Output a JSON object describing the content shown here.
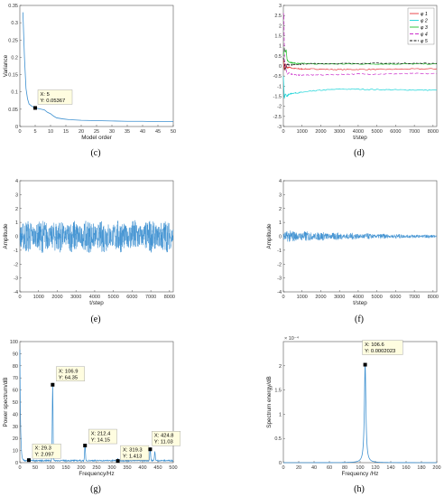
{
  "colors": {
    "signal": "#3b8fd0",
    "datatip_bg": "#fffde0",
    "axis": "#333333"
  },
  "chart_data": [
    {
      "id": "c",
      "type": "line",
      "caption": "(c)",
      "xlabel": "Model order",
      "ylabel": "Variance",
      "xlim": [
        0,
        50
      ],
      "ylim": [
        0,
        0.35
      ],
      "xticks": [
        0,
        5,
        10,
        15,
        20,
        25,
        30,
        35,
        40,
        45,
        50
      ],
      "yticks": [
        0,
        0.05,
        0.1,
        0.15,
        0.2,
        0.25,
        0.3,
        0.35
      ],
      "ytick_labels": [
        "0",
        "0.05",
        "0.1",
        "0.15",
        "0.2",
        "0.25",
        "0.3",
        "0.35"
      ],
      "series": [
        {
          "color": "#3b8fd0",
          "x": [
            1,
            1.5,
            2,
            2.5,
            3,
            4,
            5,
            6,
            7,
            8,
            9,
            10,
            11,
            12,
            14,
            16,
            18,
            20,
            25,
            30,
            35,
            40,
            45,
            50
          ],
          "y": [
            0.33,
            0.2,
            0.11,
            0.08,
            0.065,
            0.058,
            0.0537,
            0.052,
            0.05,
            0.048,
            0.041,
            0.037,
            0.03,
            0.025,
            0.022,
            0.02,
            0.019,
            0.018,
            0.017,
            0.016,
            0.015,
            0.015,
            0.014,
            0.014
          ]
        }
      ],
      "datatips": [
        {
          "x": 5,
          "y": 0.05367,
          "line1": "X: 5",
          "line2": "Y: 0.05367"
        }
      ]
    },
    {
      "id": "d",
      "type": "line",
      "caption": "(d)",
      "xlabel": "t/step",
      "ylabel": "",
      "xlim": [
        0,
        8200
      ],
      "ylim": [
        -3,
        3
      ],
      "xticks": [
        0,
        1000,
        2000,
        3000,
        4000,
        5000,
        6000,
        7000,
        8000
      ],
      "yticks": [
        -3,
        -2.5,
        -2,
        -1.5,
        -1,
        -0.5,
        0,
        0.5,
        1,
        1.5,
        2,
        2.5,
        3
      ],
      "ytick_labels": [
        "-3",
        "-2.5",
        "-2",
        "-1.5",
        "-1",
        "-0.5",
        "0",
        "0.5",
        "1",
        "1.5",
        "2",
        "2.5",
        "3"
      ],
      "legend": [
        "φ 1",
        "φ 2",
        "φ 3",
        "φ 4",
        "φ 5"
      ],
      "series": [
        {
          "name": "φ 1",
          "color": "#e8353b",
          "dash": "",
          "x": [
            0,
            50,
            100,
            200,
            300,
            500,
            800,
            1000,
            1500,
            2000,
            3000,
            4000,
            5000,
            6000,
            7000,
            8200
          ],
          "y": [
            0.3,
            -0.2,
            0.1,
            -0.1,
            -0.05,
            -0.12,
            -0.14,
            -0.15,
            -0.15,
            -0.16,
            -0.18,
            -0.17,
            -0.17,
            -0.16,
            -0.15,
            -0.14
          ]
        },
        {
          "name": "φ 2",
          "color": "#19d4d8",
          "dash": "",
          "x": [
            0,
            50,
            100,
            200,
            300,
            500,
            800,
            1000,
            1500,
            2000,
            3000,
            4000,
            5000,
            6000,
            7000,
            8200
          ],
          "y": [
            -0.5,
            -1.6,
            -1.4,
            -1.5,
            -1.4,
            -1.35,
            -1.33,
            -1.3,
            -1.25,
            -1.2,
            -1.15,
            -1.15,
            -1.17,
            -1.18,
            -1.19,
            -1.2
          ]
        },
        {
          "name": "φ 3",
          "color": "#1fbf2a",
          "dash": "",
          "x": [
            0,
            50,
            100,
            150,
            200,
            300,
            500,
            800,
            1000,
            1500,
            2000,
            3000,
            4000,
            5000,
            6000,
            7000,
            8200
          ],
          "y": [
            0.5,
            0.9,
            0.7,
            0.8,
            0.3,
            0.2,
            0.15,
            0.12,
            0.12,
            0.11,
            0.1,
            0.1,
            0.1,
            0.1,
            0.1,
            0.1,
            0.1
          ]
        },
        {
          "name": "φ 4",
          "color": "#cc2fcc",
          "dash": "4,2",
          "x": [
            0,
            30,
            60,
            100,
            200,
            300,
            500,
            800,
            1000,
            1500,
            2000,
            3000,
            4000,
            5000,
            6000,
            7000,
            8200
          ],
          "y": [
            2.6,
            2.5,
            0.3,
            0.0,
            -0.4,
            -0.35,
            -0.42,
            -0.45,
            -0.45,
            -0.45,
            -0.44,
            -0.42,
            -0.4,
            -0.4,
            -0.39,
            -0.38,
            -0.38
          ]
        },
        {
          "name": "φ 5",
          "color": "#111111",
          "dash": "3,1.5",
          "x": [
            0,
            50,
            100,
            200,
            300,
            500,
            800,
            1000,
            1500,
            2000,
            3000,
            4000,
            5000,
            6000,
            7000,
            8200
          ],
          "y": [
            0.4,
            0.2,
            -0.2,
            0.1,
            0.05,
            0.06,
            0.08,
            0.1,
            0.11,
            0.12,
            0.12,
            0.13,
            0.13,
            0.13,
            0.13,
            0.13
          ]
        }
      ]
    },
    {
      "id": "e",
      "type": "line",
      "caption": "(e)",
      "xlabel": "t/step",
      "ylabel": "Amplitude",
      "xlim": [
        0,
        8200
      ],
      "ylim": [
        -4,
        4
      ],
      "xticks": [
        0,
        1000,
        2000,
        3000,
        4000,
        5000,
        6000,
        7000,
        8000
      ],
      "yticks": [
        -4,
        -3,
        -2,
        -1,
        0,
        1,
        2,
        3,
        4
      ],
      "ytick_labels": [
        "-4",
        "-3",
        "-2",
        "-1",
        "0",
        "1",
        "2",
        "3",
        "4"
      ],
      "signal": {
        "color": "#3b8fd0",
        "amplitude_max": 1.2,
        "decay": false
      }
    },
    {
      "id": "f",
      "type": "line",
      "caption": "(f)",
      "xlabel": "t/step",
      "ylabel": "Amplitude",
      "xlim": [
        0,
        8200
      ],
      "ylim": [
        -4,
        4
      ],
      "xticks": [
        0,
        1000,
        2000,
        3000,
        4000,
        5000,
        6000,
        7000,
        8000
      ],
      "yticks": [
        -4,
        -3,
        -2,
        -1,
        0,
        1,
        2,
        3,
        4
      ],
      "ytick_labels": [
        "-4",
        "-3",
        "-2",
        "-1",
        "0",
        "1",
        "2",
        "3",
        "4"
      ],
      "signal": {
        "color": "#3b8fd0",
        "amplitude_max": 0.45,
        "decay": true
      }
    },
    {
      "id": "g",
      "type": "line",
      "caption": "(g)",
      "xlabel": "Frequency/Hz",
      "ylabel": "Power spectrum/dB",
      "xlim": [
        0,
        500
      ],
      "ylim": [
        0,
        100
      ],
      "xticks": [
        0,
        50,
        100,
        150,
        200,
        250,
        300,
        350,
        400,
        450,
        500
      ],
      "yticks": [
        0,
        10,
        20,
        30,
        40,
        50,
        60,
        70,
        80,
        90,
        100
      ],
      "ytick_labels": [
        "0",
        "10",
        "20",
        "30",
        "40",
        "50",
        "60",
        "70",
        "80",
        "90",
        "100"
      ],
      "spectrum": {
        "color": "#3b8fd0",
        "base_start": 92,
        "peaks": [
          [
            29.3,
            2.097
          ],
          [
            106.9,
            64.35
          ],
          [
            212.4,
            14.15
          ],
          [
            319.3,
            1.413
          ],
          [
            424.8,
            11.03
          ],
          [
            440,
            8
          ]
        ]
      },
      "datatips": [
        {
          "x": 29.3,
          "y": 2.097,
          "line1": "X: 29.3",
          "line2": "Y: 2.097"
        },
        {
          "x": 106.9,
          "y": 64.35,
          "line1": "X: 106.9",
          "line2": "Y: 64.35"
        },
        {
          "x": 212.4,
          "y": 14.15,
          "line1": "X: 212.4",
          "line2": "Y: 14.15"
        },
        {
          "x": 319.3,
          "y": 1.413,
          "line1": "X: 319.3",
          "line2": "Y: 1.413"
        },
        {
          "x": 424.8,
          "y": 11.03,
          "line1": "X: 424.8",
          "line2": "Y: 11.03"
        }
      ]
    },
    {
      "id": "h",
      "type": "line",
      "caption": "(h)",
      "xlabel": "Frequency /Hz",
      "ylabel": "Spectrum energy/dB",
      "xlim": [
        0,
        200
      ],
      "ylim": [
        0,
        0.00025
      ],
      "xticks": [
        0,
        20,
        40,
        60,
        80,
        100,
        120,
        140,
        160,
        180,
        200
      ],
      "yticks": [
        0,
        5e-05,
        0.0001,
        0.00015,
        0.0002
      ],
      "ytick_labels": [
        "0",
        "0.5",
        "1",
        "1.5",
        "2"
      ],
      "exponent_label": "× 10⁻⁴",
      "peak": {
        "color": "#3b8fd0",
        "x": 106.6,
        "y": 0.0002023,
        "width": 2.2
      },
      "datatips": [
        {
          "x": 106.6,
          "y": 0.0002023,
          "line1": "X: 106.6",
          "line2": "Y: 0.0002023"
        }
      ]
    }
  ]
}
